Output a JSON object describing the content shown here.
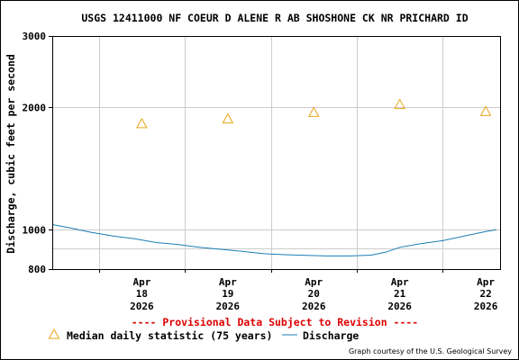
{
  "chart_data": {
    "type": "line",
    "title": "USGS 12411000 NF COEUR D ALENE R AB SHOSHONE CK NR PRICHARD ID",
    "ylabel": "Discharge, cubic feet per second",
    "xlabel": "",
    "y_scale": "log",
    "ylim": [
      800,
      3000
    ],
    "y_ticks": [
      "3000",
      "2000",
      "1000",
      "800"
    ],
    "x_ticks": [
      {
        "month": "Apr",
        "day": "18",
        "year": "2026"
      },
      {
        "month": "Apr",
        "day": "19",
        "year": "2026"
      },
      {
        "month": "Apr",
        "day": "20",
        "year": "2026"
      },
      {
        "month": "Apr",
        "day": "21",
        "year": "2026"
      },
      {
        "month": "Apr",
        "day": "22",
        "year": "2026"
      }
    ],
    "xlim": [
      "2026-04-17 11:00",
      "2026-04-22 16:00"
    ],
    "grid": true,
    "series": [
      {
        "name": "Median daily statistic (75 years)",
        "kind": "points",
        "marker": "triangle",
        "color": "#e8a317",
        "points": [
          {
            "x": "2026-04-18",
            "y": 1830
          },
          {
            "x": "2026-04-19",
            "y": 1880
          },
          {
            "x": "2026-04-20",
            "y": 1950
          },
          {
            "x": "2026-04-21",
            "y": 2040
          },
          {
            "x": "2026-04-22",
            "y": 1960
          }
        ]
      },
      {
        "name": "Discharge",
        "kind": "line",
        "color": "#1a7db5",
        "points": [
          {
            "x": "2026-04-17 11:00",
            "y": 1030
          },
          {
            "x": "2026-04-17 16:00",
            "y": 1010
          },
          {
            "x": "2026-04-17 22:00",
            "y": 985
          },
          {
            "x": "2026-04-18 04:00",
            "y": 965
          },
          {
            "x": "2026-04-18 10:00",
            "y": 950
          },
          {
            "x": "2026-04-18 16:00",
            "y": 930
          },
          {
            "x": "2026-04-18 22:00",
            "y": 920
          },
          {
            "x": "2026-04-19 04:00",
            "y": 905
          },
          {
            "x": "2026-04-19 10:00",
            "y": 895
          },
          {
            "x": "2026-04-19 16:00",
            "y": 885
          },
          {
            "x": "2026-04-19 22:00",
            "y": 873
          },
          {
            "x": "2026-04-20 04:00",
            "y": 868
          },
          {
            "x": "2026-04-20 10:00",
            "y": 865
          },
          {
            "x": "2026-04-20 16:00",
            "y": 862
          },
          {
            "x": "2026-04-20 22:00",
            "y": 862
          },
          {
            "x": "2026-04-21 04:00",
            "y": 866
          },
          {
            "x": "2026-04-21 08:00",
            "y": 880
          },
          {
            "x": "2026-04-21 12:00",
            "y": 905
          },
          {
            "x": "2026-04-21 18:00",
            "y": 925
          },
          {
            "x": "2026-04-22 00:00",
            "y": 940
          },
          {
            "x": "2026-04-22 06:00",
            "y": 965
          },
          {
            "x": "2026-04-22 12:00",
            "y": 990
          },
          {
            "x": "2026-04-22 15:00",
            "y": 1000
          }
        ]
      }
    ]
  },
  "provisional_note": "---- Provisional Data Subject to Revision ----",
  "credit": "Graph courtesy of the U.S. Geological Survey",
  "colors": {
    "frame": "#000000",
    "grid": "#cccccc",
    "provisional": "#dd0000"
  }
}
